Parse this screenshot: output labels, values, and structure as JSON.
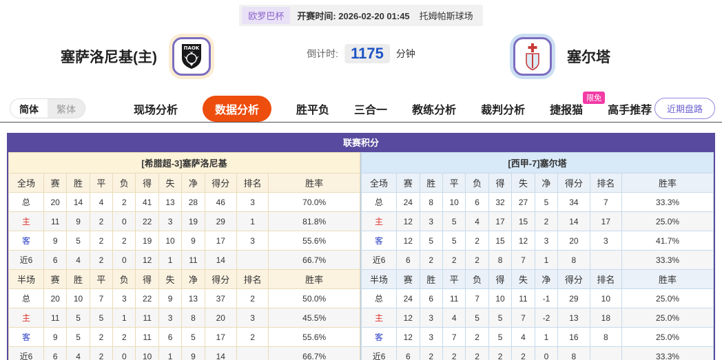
{
  "header": {
    "league_badge": "欧罗巴杯",
    "kickoff_label": "开赛时间:",
    "kickoff_value": "2026-02-20 01:45",
    "venue": "托姆帕斯球场"
  },
  "home_team": {
    "name": "塞萨洛尼基(主)",
    "logo_text": "ΠΑΟΚ"
  },
  "away_team": {
    "name": "塞尔塔"
  },
  "countdown": {
    "label": "倒计时:",
    "value": "1175",
    "unit": "分钟"
  },
  "nav": {
    "lang": {
      "simplified": "简体",
      "traditional": "繁体"
    },
    "tabs": [
      {
        "label": "现场分析",
        "active": false
      },
      {
        "label": "数据分析",
        "active": true
      },
      {
        "label": "胜平负",
        "active": false
      },
      {
        "label": "三合一",
        "active": false
      },
      {
        "label": "教练分析",
        "active": false
      },
      {
        "label": "裁判分析",
        "active": false
      },
      {
        "label": "捷报猫",
        "active": false,
        "badge": "限免"
      },
      {
        "label": "高手推荐",
        "active": false
      }
    ],
    "right_button": "近期盘路"
  },
  "colors": {
    "accent_purple": "#584a9e",
    "active_tab_orange": "#ed4d0d",
    "badge_pink": "#f23ba5",
    "countdown_blue": "#1d54c5",
    "row_label_red": "#d9342b",
    "row_label_blue": "#2b3fc2"
  },
  "league_table": {
    "title": "联赛积分",
    "columns": [
      "赛",
      "胜",
      "平",
      "负",
      "得",
      "失",
      "净",
      "得分",
      "排名",
      "胜率"
    ],
    "row_label_colors": {
      "主": "#d9342b",
      "客": "#2b3fc2"
    },
    "home": {
      "subtitle": "[希腊超-3]塞萨洛尼基",
      "sections": [
        {
          "scope": "全场",
          "rows": [
            {
              "label": "总",
              "values": [
                "20",
                "14",
                "4",
                "2",
                "41",
                "13",
                "28",
                "46",
                "3",
                "70.0%"
              ]
            },
            {
              "label": "主",
              "values": [
                "11",
                "9",
                "2",
                "0",
                "22",
                "3",
                "19",
                "29",
                "1",
                "81.8%"
              ]
            },
            {
              "label": "客",
              "values": [
                "9",
                "5",
                "2",
                "2",
                "19",
                "10",
                "9",
                "17",
                "3",
                "55.6%"
              ]
            },
            {
              "label": "近6",
              "values": [
                "6",
                "4",
                "2",
                "0",
                "12",
                "1",
                "11",
                "14",
                "",
                "66.7%"
              ]
            }
          ]
        },
        {
          "scope": "半场",
          "rows": [
            {
              "label": "总",
              "values": [
                "20",
                "10",
                "7",
                "3",
                "22",
                "9",
                "13",
                "37",
                "2",
                "50.0%"
              ]
            },
            {
              "label": "主",
              "values": [
                "11",
                "5",
                "5",
                "1",
                "11",
                "3",
                "8",
                "20",
                "3",
                "45.5%"
              ]
            },
            {
              "label": "客",
              "values": [
                "9",
                "5",
                "2",
                "2",
                "11",
                "6",
                "5",
                "17",
                "2",
                "55.6%"
              ]
            },
            {
              "label": "近6",
              "values": [
                "6",
                "4",
                "2",
                "0",
                "10",
                "1",
                "9",
                "14",
                "",
                "66.7%"
              ]
            }
          ]
        }
      ]
    },
    "away": {
      "subtitle": "[西甲-7]塞尔塔",
      "sections": [
        {
          "scope": "全场",
          "rows": [
            {
              "label": "总",
              "values": [
                "24",
                "8",
                "10",
                "6",
                "32",
                "27",
                "5",
                "34",
                "7",
                "33.3%"
              ]
            },
            {
              "label": "主",
              "values": [
                "12",
                "3",
                "5",
                "4",
                "17",
                "15",
                "2",
                "14",
                "17",
                "25.0%"
              ]
            },
            {
              "label": "客",
              "values": [
                "12",
                "5",
                "5",
                "2",
                "15",
                "12",
                "3",
                "20",
                "3",
                "41.7%"
              ]
            },
            {
              "label": "近6",
              "values": [
                "6",
                "2",
                "2",
                "2",
                "8",
                "7",
                "1",
                "8",
                "",
                "33.3%"
              ]
            }
          ]
        },
        {
          "scope": "半场",
          "rows": [
            {
              "label": "总",
              "values": [
                "24",
                "6",
                "11",
                "7",
                "10",
                "11",
                "-1",
                "29",
                "10",
                "25.0%"
              ]
            },
            {
              "label": "主",
              "values": [
                "12",
                "3",
                "4",
                "5",
                "5",
                "7",
                "-2",
                "13",
                "18",
                "25.0%"
              ]
            },
            {
              "label": "客",
              "values": [
                "12",
                "3",
                "7",
                "2",
                "5",
                "4",
                "1",
                "16",
                "8",
                "25.0%"
              ]
            },
            {
              "label": "近6",
              "values": [
                "6",
                "2",
                "2",
                "2",
                "2",
                "2",
                "0",
                "8",
                "",
                "33.3%"
              ]
            }
          ]
        }
      ]
    }
  }
}
